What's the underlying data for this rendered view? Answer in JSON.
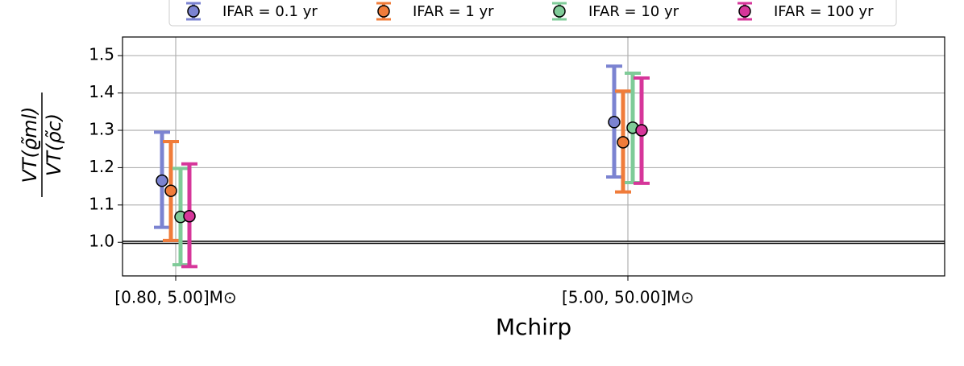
{
  "chart_data": {
    "type": "errorbar",
    "y_label_numerator": "VT(ϱ̃ml)",
    "y_label_denominator": "VT(ρ̃c)",
    "x_label": "Mchirp",
    "categories": [
      "[0.80, 5.00]M⊙",
      "[5.00, 50.00]M⊙"
    ],
    "series": [
      {
        "name": "IFAR = 0.1 yr",
        "color": "#7b83d1",
        "values": [
          1.165,
          1.322
        ],
        "lower": [
          1.04,
          1.175
        ],
        "upper": [
          1.295,
          1.472
        ]
      },
      {
        "name": "IFAR = 1 yr",
        "color": "#f07c3a",
        "values": [
          1.138,
          1.268
        ],
        "lower": [
          1.005,
          1.135
        ],
        "upper": [
          1.27,
          1.405
        ]
      },
      {
        "name": "IFAR = 10 yr",
        "color": "#7fcb98",
        "values": [
          1.068,
          1.307
        ],
        "lower": [
          0.94,
          1.16
        ],
        "upper": [
          1.198,
          1.453
        ]
      },
      {
        "name": "IFAR = 100 yr",
        "color": "#d6369a",
        "values": [
          1.07,
          1.3
        ],
        "lower": [
          0.935,
          1.158
        ],
        "upper": [
          1.21,
          1.44
        ]
      }
    ],
    "reference_line": 1,
    "ylim": [
      0.91,
      1.55
    ],
    "yticks": [
      {
        "value": 1,
        "label": "1.0"
      },
      1.1,
      1.2,
      1.3,
      1.4,
      1.5
    ],
    "grid": true
  }
}
